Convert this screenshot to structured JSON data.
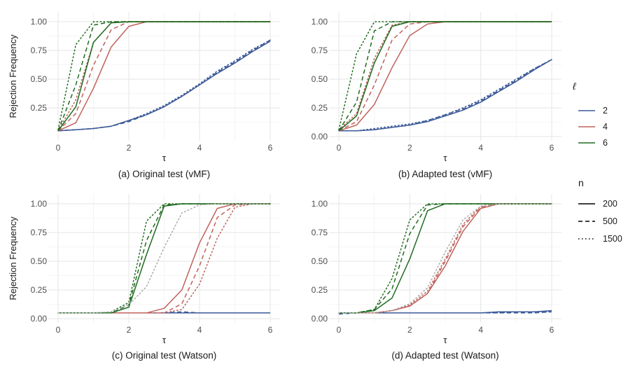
{
  "chart_data": [
    {
      "type": "line",
      "caption": "(a) Original test  (vMF)",
      "xlabel": "τ",
      "ylabel": "Rejection Frequency",
      "xlim": [
        0,
        6
      ],
      "ylim": [
        0.05,
        1.0
      ],
      "xticks": [
        "0",
        "2",
        "4",
        "6"
      ],
      "yticks": [
        "0.25",
        "0.50",
        "0.75",
        "1.00"
      ],
      "x": [
        0,
        0.5,
        1,
        1.5,
        2,
        2.5,
        3,
        3.5,
        4,
        4.5,
        5,
        5.5,
        6
      ],
      "series": [
        {
          "l": "2",
          "n": "200",
          "values": [
            0.05,
            0.06,
            0.07,
            0.09,
            0.14,
            0.19,
            0.26,
            0.35,
            0.45,
            0.55,
            0.64,
            0.74,
            0.83
          ]
        },
        {
          "l": "2",
          "n": "500",
          "values": [
            0.05,
            0.06,
            0.07,
            0.09,
            0.13,
            0.19,
            0.26,
            0.35,
            0.45,
            0.56,
            0.65,
            0.75,
            0.84
          ]
        },
        {
          "l": "2",
          "n": "1500",
          "values": [
            0.05,
            0.06,
            0.07,
            0.09,
            0.14,
            0.2,
            0.27,
            0.36,
            0.46,
            0.57,
            0.66,
            0.76,
            0.84
          ]
        },
        {
          "l": "4",
          "n": "200",
          "values": [
            0.05,
            0.12,
            0.42,
            0.78,
            0.96,
            1.0,
            1.0,
            1.0,
            1.0,
            1.0,
            1.0,
            1.0,
            1.0
          ]
        },
        {
          "l": "4",
          "n": "500",
          "values": [
            0.05,
            0.2,
            0.62,
            0.93,
            1.0,
            1.0,
            1.0,
            1.0,
            1.0,
            1.0,
            1.0,
            1.0,
            1.0
          ]
        },
        {
          "l": "4",
          "n": "1500",
          "values": [
            0.05,
            0.32,
            0.82,
            0.99,
            1.0,
            1.0,
            1.0,
            1.0,
            1.0,
            1.0,
            1.0,
            1.0,
            1.0
          ]
        },
        {
          "l": "6",
          "n": "200",
          "values": [
            0.05,
            0.26,
            0.82,
            0.99,
            1.0,
            1.0,
            1.0,
            1.0,
            1.0,
            1.0,
            1.0,
            1.0,
            1.0
          ]
        },
        {
          "l": "6",
          "n": "500",
          "values": [
            0.05,
            0.45,
            0.97,
            1.0,
            1.0,
            1.0,
            1.0,
            1.0,
            1.0,
            1.0,
            1.0,
            1.0,
            1.0
          ]
        },
        {
          "l": "6",
          "n": "1500",
          "values": [
            0.06,
            0.8,
            1.0,
            1.0,
            1.0,
            1.0,
            1.0,
            1.0,
            1.0,
            1.0,
            1.0,
            1.0,
            1.0
          ]
        }
      ]
    },
    {
      "type": "line",
      "caption": "(b) Adapted test (vMF)",
      "xlabel": "τ",
      "ylabel": "",
      "xlim": [
        0,
        6
      ],
      "ylim": [
        0.0,
        1.0
      ],
      "xticks": [
        "0",
        "2",
        "4",
        "6"
      ],
      "yticks": [
        "0.00",
        "0.25",
        "0.50",
        "0.75",
        "1.00"
      ],
      "x": [
        0,
        0.5,
        1,
        1.5,
        2,
        2.5,
        3,
        3.5,
        4,
        4.5,
        5,
        5.5,
        6
      ],
      "series": [
        {
          "l": "2",
          "n": "200",
          "values": [
            0.05,
            0.05,
            0.06,
            0.08,
            0.1,
            0.13,
            0.18,
            0.23,
            0.3,
            0.39,
            0.48,
            0.58,
            0.67
          ]
        },
        {
          "l": "2",
          "n": "500",
          "values": [
            0.05,
            0.05,
            0.06,
            0.08,
            0.1,
            0.14,
            0.19,
            0.24,
            0.31,
            0.4,
            0.49,
            0.59,
            0.67
          ]
        },
        {
          "l": "2",
          "n": "1500",
          "values": [
            0.05,
            0.05,
            0.07,
            0.09,
            0.11,
            0.14,
            0.19,
            0.25,
            0.32,
            0.41,
            0.5,
            0.59,
            0.67
          ]
        },
        {
          "l": "4",
          "n": "200",
          "values": [
            0.05,
            0.1,
            0.28,
            0.6,
            0.88,
            0.98,
            1.0,
            1.0,
            1.0,
            1.0,
            1.0,
            1.0,
            1.0
          ]
        },
        {
          "l": "4",
          "n": "500",
          "values": [
            0.05,
            0.13,
            0.45,
            0.84,
            0.98,
            1.0,
            1.0,
            1.0,
            1.0,
            1.0,
            1.0,
            1.0,
            1.0
          ]
        },
        {
          "l": "4",
          "n": "1500",
          "values": [
            0.06,
            0.2,
            0.68,
            0.97,
            1.0,
            1.0,
            1.0,
            1.0,
            1.0,
            1.0,
            1.0,
            1.0,
            1.0
          ]
        },
        {
          "l": "6",
          "n": "200",
          "values": [
            0.05,
            0.18,
            0.64,
            0.96,
            1.0,
            1.0,
            1.0,
            1.0,
            1.0,
            1.0,
            1.0,
            1.0,
            1.0
          ]
        },
        {
          "l": "6",
          "n": "500",
          "values": [
            0.05,
            0.3,
            0.92,
            1.0,
            1.0,
            1.0,
            1.0,
            1.0,
            1.0,
            1.0,
            1.0,
            1.0,
            1.0
          ]
        },
        {
          "l": "6",
          "n": "1500",
          "values": [
            0.06,
            0.72,
            1.0,
            1.0,
            1.0,
            1.0,
            1.0,
            1.0,
            1.0,
            1.0,
            1.0,
            1.0,
            1.0
          ]
        }
      ]
    },
    {
      "type": "line",
      "caption": "(c) Original test (Watson)",
      "xlabel": "τ",
      "ylabel": "Rejection Frequency",
      "xlim": [
        0,
        6
      ],
      "ylim": [
        0.0,
        1.0
      ],
      "xticks": [
        "0",
        "2",
        "4",
        "6"
      ],
      "yticks": [
        "0.00",
        "0.25",
        "0.50",
        "0.75",
        "1.00"
      ],
      "x": [
        0,
        0.5,
        1,
        1.5,
        2,
        2.5,
        3,
        3.5,
        4,
        4.5,
        5,
        5.5,
        6
      ],
      "series": [
        {
          "l": "2",
          "n": "200",
          "values": [
            0.05,
            0.05,
            0.05,
            0.05,
            0.05,
            0.05,
            0.05,
            0.05,
            0.05,
            0.05,
            0.05,
            0.05,
            0.05
          ]
        },
        {
          "l": "2",
          "n": "500",
          "values": [
            0.05,
            0.05,
            0.05,
            0.05,
            0.05,
            0.05,
            0.05,
            0.06,
            0.05,
            0.05,
            0.05,
            0.05,
            0.05
          ]
        },
        {
          "l": "2",
          "n": "1500",
          "values": [
            0.05,
            0.05,
            0.05,
            0.05,
            0.05,
            0.05,
            0.05,
            0.05,
            0.05,
            0.05,
            0.05,
            0.05,
            0.05
          ]
        },
        {
          "l": "4",
          "n": "200",
          "values": [
            0.05,
            0.05,
            0.05,
            0.05,
            0.05,
            0.05,
            0.09,
            0.25,
            0.66,
            0.96,
            1.0,
            1.0,
            1.0
          ]
        },
        {
          "l": "4",
          "n": "500",
          "values": [
            0.05,
            0.05,
            0.05,
            0.05,
            0.05,
            0.05,
            0.05,
            0.13,
            0.46,
            0.88,
            0.99,
            1.0,
            1.0
          ]
        },
        {
          "l": "4",
          "n": "1500",
          "values": [
            0.05,
            0.05,
            0.05,
            0.05,
            0.05,
            0.05,
            0.05,
            0.08,
            0.3,
            0.7,
            0.97,
            1.0,
            1.0
          ]
        },
        {
          "l": "6",
          "n": "200",
          "values": [
            0.05,
            0.05,
            0.05,
            0.05,
            0.1,
            0.56,
            0.98,
            1.0,
            1.0,
            1.0,
            1.0,
            1.0,
            1.0
          ]
        },
        {
          "l": "6",
          "n": "500",
          "values": [
            0.05,
            0.05,
            0.05,
            0.05,
            0.12,
            0.68,
            0.99,
            1.0,
            1.0,
            1.0,
            1.0,
            1.0,
            1.0
          ]
        },
        {
          "l": "6",
          "n": "1500",
          "values": [
            0.05,
            0.05,
            0.05,
            0.06,
            0.14,
            0.85,
            1.0,
            1.0,
            1.0,
            1.0,
            1.0,
            1.0,
            1.0
          ]
        },
        {
          "l": "6",
          "n": "1500",
          "label": "grey dotted",
          "color": "#aaaaaa",
          "values": [
            0.05,
            0.05,
            0.05,
            0.06,
            0.12,
            0.28,
            0.62,
            0.92,
            0.99,
            1.0,
            1.0,
            1.0,
            1.0
          ]
        }
      ]
    },
    {
      "type": "line",
      "caption": "(d) Adapted test (Watson)",
      "xlabel": "τ",
      "ylabel": "",
      "xlim": [
        0,
        6
      ],
      "ylim": [
        0.0,
        1.0
      ],
      "xticks": [
        "0",
        "2",
        "4",
        "6"
      ],
      "yticks": [
        "0.00",
        "0.25",
        "0.50",
        "0.75",
        "1.00"
      ],
      "x": [
        0,
        0.5,
        1,
        1.5,
        2,
        2.5,
        3,
        3.5,
        4,
        4.5,
        5,
        5.5,
        6
      ],
      "series": [
        {
          "l": "2",
          "n": "200",
          "values": [
            0.05,
            0.05,
            0.05,
            0.05,
            0.05,
            0.05,
            0.05,
            0.05,
            0.05,
            0.06,
            0.06,
            0.06,
            0.07
          ]
        },
        {
          "l": "2",
          "n": "500",
          "values": [
            0.04,
            0.05,
            0.05,
            0.05,
            0.05,
            0.05,
            0.05,
            0.05,
            0.05,
            0.05,
            0.05,
            0.05,
            0.06
          ]
        },
        {
          "l": "2",
          "n": "1500",
          "values": [
            0.05,
            0.05,
            0.05,
            0.05,
            0.05,
            0.05,
            0.05,
            0.05,
            0.05,
            0.05,
            0.06,
            0.06,
            0.06
          ]
        },
        {
          "l": "4",
          "n": "200",
          "values": [
            0.05,
            0.05,
            0.05,
            0.07,
            0.11,
            0.22,
            0.46,
            0.76,
            0.96,
            1.0,
            1.0,
            1.0,
            1.0
          ]
        },
        {
          "l": "4",
          "n": "500",
          "values": [
            0.05,
            0.05,
            0.05,
            0.07,
            0.11,
            0.22,
            0.5,
            0.8,
            0.97,
            1.0,
            1.0,
            1.0,
            1.0
          ]
        },
        {
          "l": "4",
          "n": "1500",
          "values": [
            0.05,
            0.05,
            0.05,
            0.07,
            0.12,
            0.24,
            0.52,
            0.82,
            0.98,
            1.0,
            1.0,
            1.0,
            1.0
          ]
        },
        {
          "l": "6",
          "n": "200",
          "values": [
            0.05,
            0.05,
            0.07,
            0.18,
            0.52,
            0.94,
            1.0,
            1.0,
            1.0,
            1.0,
            1.0,
            1.0,
            1.0
          ]
        },
        {
          "l": "6",
          "n": "500",
          "values": [
            0.05,
            0.05,
            0.08,
            0.26,
            0.74,
            0.99,
            1.0,
            1.0,
            1.0,
            1.0,
            1.0,
            1.0,
            1.0
          ]
        },
        {
          "l": "6",
          "n": "1500",
          "values": [
            0.05,
            0.05,
            0.08,
            0.35,
            0.86,
            1.0,
            1.0,
            1.0,
            1.0,
            1.0,
            1.0,
            1.0,
            1.0
          ]
        },
        {
          "l": "4",
          "n": "1500",
          "label": "grey dotted",
          "color": "#aaaaaa",
          "values": [
            0.05,
            0.05,
            0.05,
            0.07,
            0.13,
            0.27,
            0.58,
            0.86,
            0.98,
            1.0,
            1.0,
            1.0,
            1.0
          ]
        }
      ]
    }
  ],
  "legend": {
    "l_title": "ℓ",
    "l_items": [
      {
        "label": "2",
        "color": "#3B5998"
      },
      {
        "label": "4",
        "color": "#C0625C"
      },
      {
        "label": "6",
        "color": "#1F6B1F"
      }
    ],
    "n_title": "n",
    "n_items": [
      {
        "label": "200",
        "style": "solid"
      },
      {
        "label": "500",
        "style": "dashed"
      },
      {
        "label": "1500",
        "style": "dotted"
      }
    ]
  },
  "colors": {
    "2": "#3B5998",
    "4": "#C0625C",
    "6": "#1F6B1F"
  }
}
